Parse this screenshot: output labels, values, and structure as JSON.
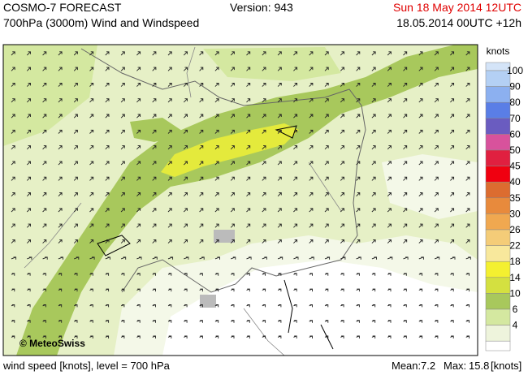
{
  "header": {
    "title": "COSMO-7 FORECAST",
    "subtitle": "700hPa (3000m) Wind and Windspeed",
    "version": "Version: 943",
    "valid_time": "Sun 18 May 2014 12UTC",
    "run": "18.05.2014 00UTC +12h"
  },
  "map": {
    "copyright": "© MeteoSwiss"
  },
  "legend": {
    "unit": "knots",
    "levels": [
      {
        "label": 100,
        "color": "#b4d0f4"
      },
      {
        "label": 90,
        "color": "#8cb0f0"
      },
      {
        "label": 80,
        "color": "#5a7ee6"
      },
      {
        "label": 70,
        "color": "#6a5cc0"
      },
      {
        "label": 60,
        "color": "#d8529c"
      },
      {
        "label": 50,
        "color": "#e02040"
      },
      {
        "label": 45,
        "color": "#f00010"
      },
      {
        "label": 40,
        "color": "#dc6c30"
      },
      {
        "label": 35,
        "color": "#e88a3c"
      },
      {
        "label": 30,
        "color": "#f0a850"
      },
      {
        "label": 26,
        "color": "#f4cc78"
      },
      {
        "label": 22,
        "color": "#f8e89c"
      },
      {
        "label": 18,
        "color": "#f4f030"
      },
      {
        "label": 14,
        "color": "#d4e040"
      },
      {
        "label": 10,
        "color": "#a8c85c"
      },
      {
        "label": 6,
        "color": "#d4e8a0"
      },
      {
        "label": 4,
        "color": "#eef4dc"
      }
    ]
  },
  "footer": {
    "description": "wind speed [knots], level = 700 hPa",
    "mean_label": "Mean:",
    "mean": 7.2,
    "max_label": "Max:",
    "max": 15.8,
    "unit": "[knots]"
  }
}
